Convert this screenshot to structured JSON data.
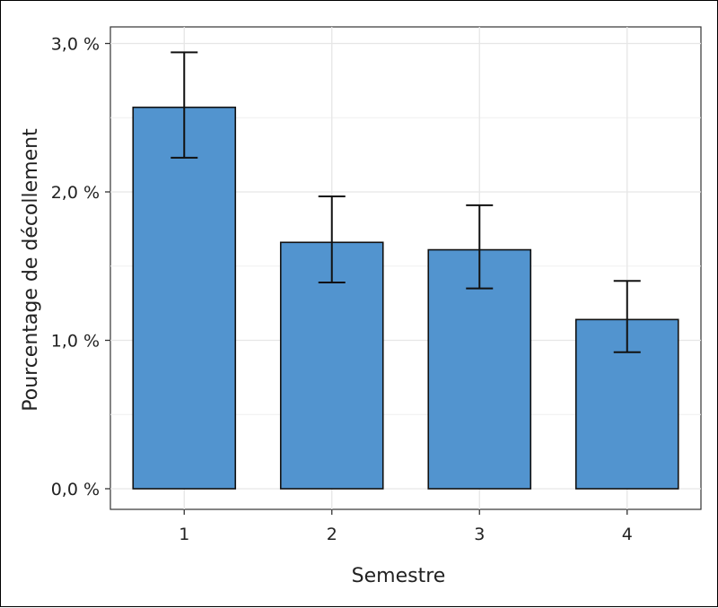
{
  "chart_data": {
    "type": "bar",
    "categories": [
      "1",
      "2",
      "3",
      "4"
    ],
    "values": [
      2.57,
      1.66,
      1.61,
      1.14
    ],
    "error_upper": [
      2.94,
      1.97,
      1.91,
      1.4
    ],
    "error_lower": [
      2.23,
      1.39,
      1.35,
      0.92
    ],
    "xlabel": "Semestre",
    "ylabel": "Pourcentage de décollement",
    "ylim": [
      0,
      3.0
    ],
    "y_ticks": [
      0,
      1.0,
      2.0,
      3.0
    ],
    "y_tick_labels": [
      "0,0 %",
      "1,0 %",
      "2,0 %",
      "3,0 %"
    ],
    "grid": true,
    "bar_color": "#5294cf",
    "bar_edge_color": "#111111"
  }
}
